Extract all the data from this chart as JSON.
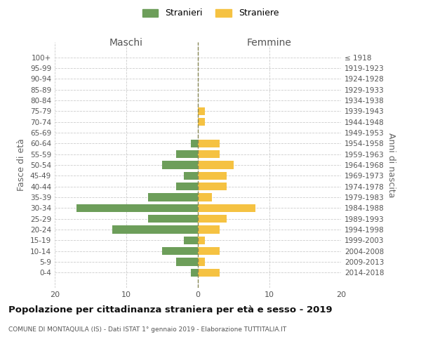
{
  "age_groups": [
    "0-4",
    "5-9",
    "10-14",
    "15-19",
    "20-24",
    "25-29",
    "30-34",
    "35-39",
    "40-44",
    "45-49",
    "50-54",
    "55-59",
    "60-64",
    "65-69",
    "70-74",
    "75-79",
    "80-84",
    "85-89",
    "90-94",
    "95-99",
    "100+"
  ],
  "birth_years": [
    "2014-2018",
    "2009-2013",
    "2004-2008",
    "1999-2003",
    "1994-1998",
    "1989-1993",
    "1984-1988",
    "1979-1983",
    "1974-1978",
    "1969-1973",
    "1964-1968",
    "1959-1963",
    "1954-1958",
    "1949-1953",
    "1944-1948",
    "1939-1943",
    "1934-1938",
    "1929-1933",
    "1924-1928",
    "1919-1923",
    "≤ 1918"
  ],
  "maschi": [
    1,
    3,
    5,
    2,
    12,
    7,
    17,
    7,
    3,
    2,
    5,
    3,
    1,
    0,
    0,
    0,
    0,
    0,
    0,
    0,
    0
  ],
  "femmine": [
    3,
    1,
    3,
    1,
    3,
    4,
    8,
    2,
    4,
    4,
    5,
    3,
    3,
    0,
    1,
    1,
    0,
    0,
    0,
    0,
    0
  ],
  "color_maschi": "#6d9e5a",
  "color_femmine": "#f5c242",
  "title": "Popolazione per cittadinanza straniera per età e sesso - 2019",
  "subtitle": "COMUNE DI MONTAQUILA (IS) - Dati ISTAT 1° gennaio 2019 - Elaborazione TUTTITALIA.IT",
  "ylabel_left": "Fasce di età",
  "ylabel_right": "Anni di nascita",
  "xlabel_maschi": "Maschi",
  "xlabel_femmine": "Femmine",
  "legend_stranieri": "Stranieri",
  "legend_straniere": "Straniere",
  "xlim": 20,
  "background_color": "#ffffff",
  "grid_color": "#cccccc"
}
